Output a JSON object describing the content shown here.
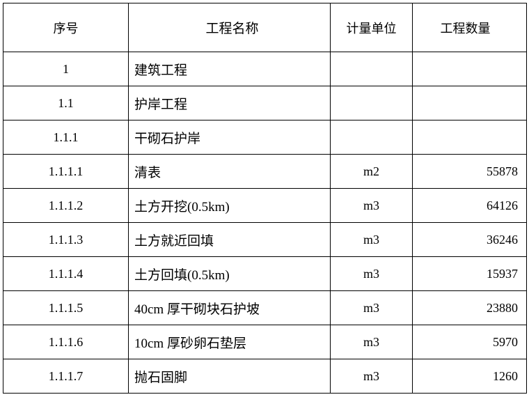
{
  "table": {
    "headers": {
      "seq": "序号",
      "name": "工程名称",
      "unit": "计量单位",
      "qty": "工程数量"
    },
    "rows": [
      {
        "seq": "1",
        "name": "建筑工程",
        "unit": "",
        "qty": ""
      },
      {
        "seq": "1.1",
        "name": "护岸工程",
        "unit": "",
        "qty": ""
      },
      {
        "seq": "1.1.1",
        "name": "干砌石护岸",
        "unit": "",
        "qty": ""
      },
      {
        "seq": "1.1.1.1",
        "name": "清表",
        "unit": "m2",
        "qty": "55878"
      },
      {
        "seq": "1.1.1.2",
        "name": "土方开挖(0.5km)",
        "unit": "m3",
        "qty": "64126"
      },
      {
        "seq": "1.1.1.3",
        "name": "土方就近回填",
        "unit": "m3",
        "qty": "36246"
      },
      {
        "seq": "1.1.1.4",
        "name": "土方回填(0.5km)",
        "unit": "m3",
        "qty": "15937"
      },
      {
        "seq": "1.1.1.5",
        "name": "40cm 厚干砌块石护坡",
        "unit": "m3",
        "qty": "23880"
      },
      {
        "seq": "1.1.1.6",
        "name": "10cm 厚砂卵石垫层",
        "unit": "m3",
        "qty": "5970"
      },
      {
        "seq": "1.1.1.7",
        "name": "抛石固脚",
        "unit": "m3",
        "qty": "1260"
      }
    ],
    "styling": {
      "border_color": "#000000",
      "background_color": "#ffffff",
      "font_family": "SimSun",
      "header_fontsize": 21,
      "cell_fontsize": 18,
      "header_row_height": 70,
      "data_row_height": 49,
      "col_widths": {
        "seq": 180,
        "name": 290,
        "unit": 118,
        "qty": 164
      },
      "col_align": {
        "seq": "center",
        "name": "left",
        "unit": "center",
        "qty": "right"
      }
    }
  }
}
